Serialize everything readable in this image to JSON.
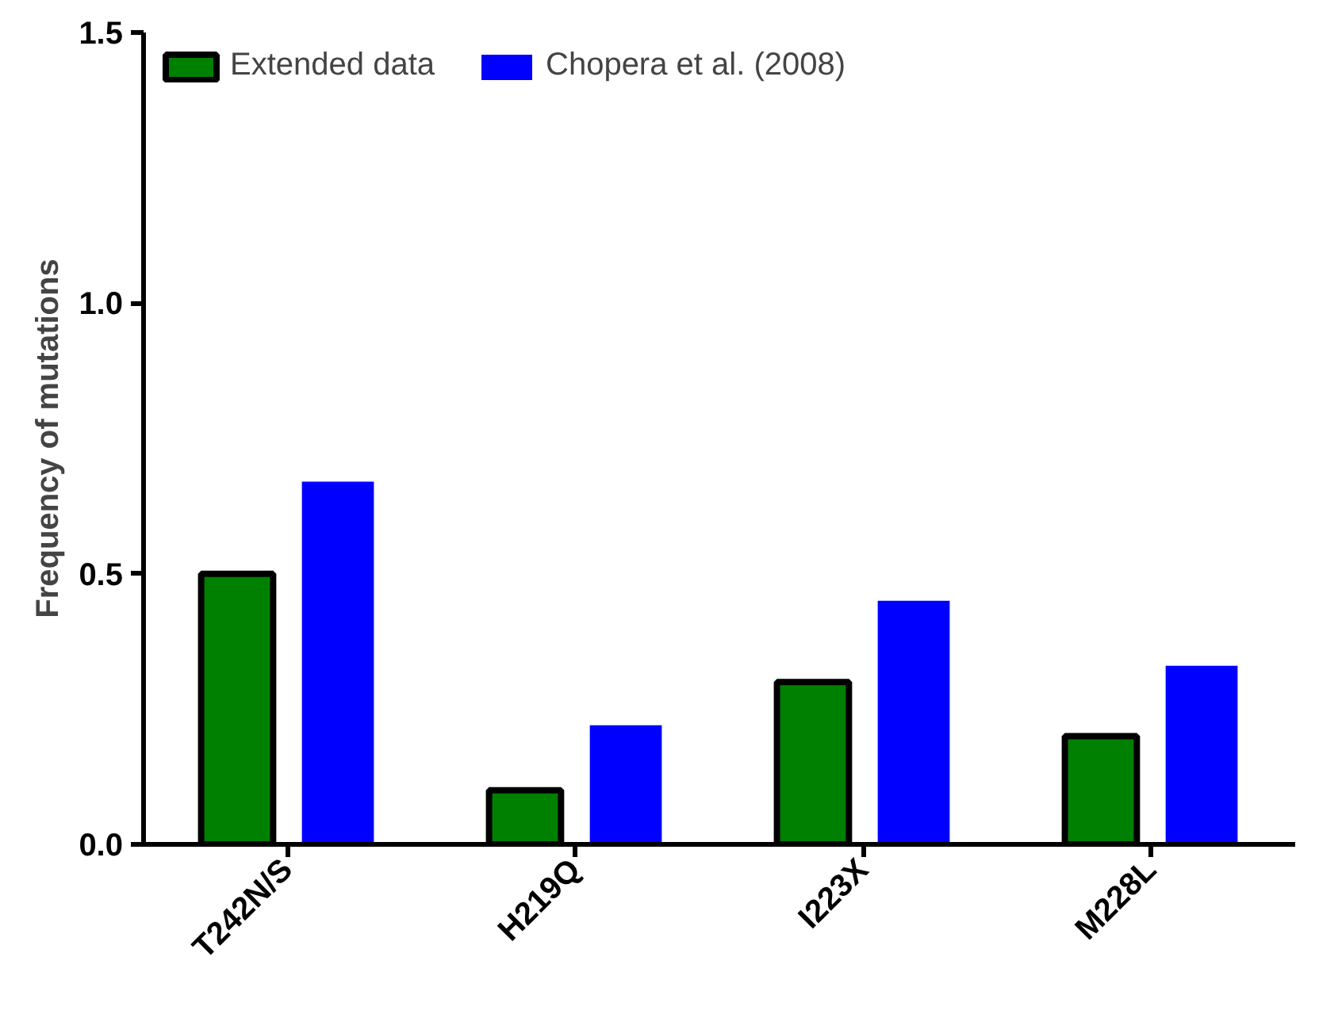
{
  "chart_data": {
    "type": "bar",
    "ylabel": "Frequency of mutations",
    "categories": [
      "T242N/S",
      "H219Q",
      "I223X",
      "M228L"
    ],
    "series": [
      {
        "name": "Extended data",
        "color": "#008000",
        "values": [
          0.5,
          0.1,
          0.3,
          0.2
        ]
      },
      {
        "name": "Chopera et al. (2008)",
        "color": "#0000ff",
        "values": [
          0.67,
          0.22,
          0.45,
          0.33
        ]
      }
    ],
    "ylim": [
      0,
      1.5
    ],
    "yticks": [
      {
        "value": 0,
        "label": "0.0"
      },
      {
        "value": 0.5,
        "label": "0.5"
      },
      {
        "value": 1,
        "label": "1.0"
      },
      {
        "value": 1.5,
        "label": "1.5"
      }
    ],
    "grid": false,
    "legend": "top left"
  }
}
